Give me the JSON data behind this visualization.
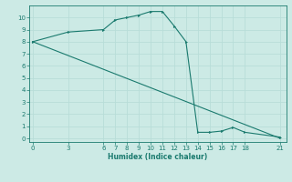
{
  "xlabel": "Humidex (Indice chaleur)",
  "bg_color": "#cceae5",
  "line_color": "#1a7a6e",
  "grid_color": "#b8ddd8",
  "line1_x": [
    0,
    3,
    6,
    7,
    8,
    9,
    10,
    11,
    12,
    13,
    14,
    15,
    16,
    17,
    18,
    21
  ],
  "line1_y": [
    8.0,
    8.8,
    9.0,
    9.8,
    10.0,
    10.2,
    10.5,
    10.5,
    9.3,
    8.0,
    0.5,
    0.5,
    0.6,
    0.9,
    0.5,
    0.1
  ],
  "line2_x": [
    0,
    21
  ],
  "line2_y": [
    8.0,
    0.0
  ],
  "xticks": [
    0,
    3,
    6,
    7,
    8,
    9,
    10,
    11,
    12,
    13,
    14,
    15,
    16,
    17,
    18,
    21
  ],
  "yticks": [
    0,
    1,
    2,
    3,
    4,
    5,
    6,
    7,
    8,
    9,
    10
  ],
  "xlim": [
    -0.3,
    21.5
  ],
  "ylim": [
    -0.3,
    11.0
  ]
}
